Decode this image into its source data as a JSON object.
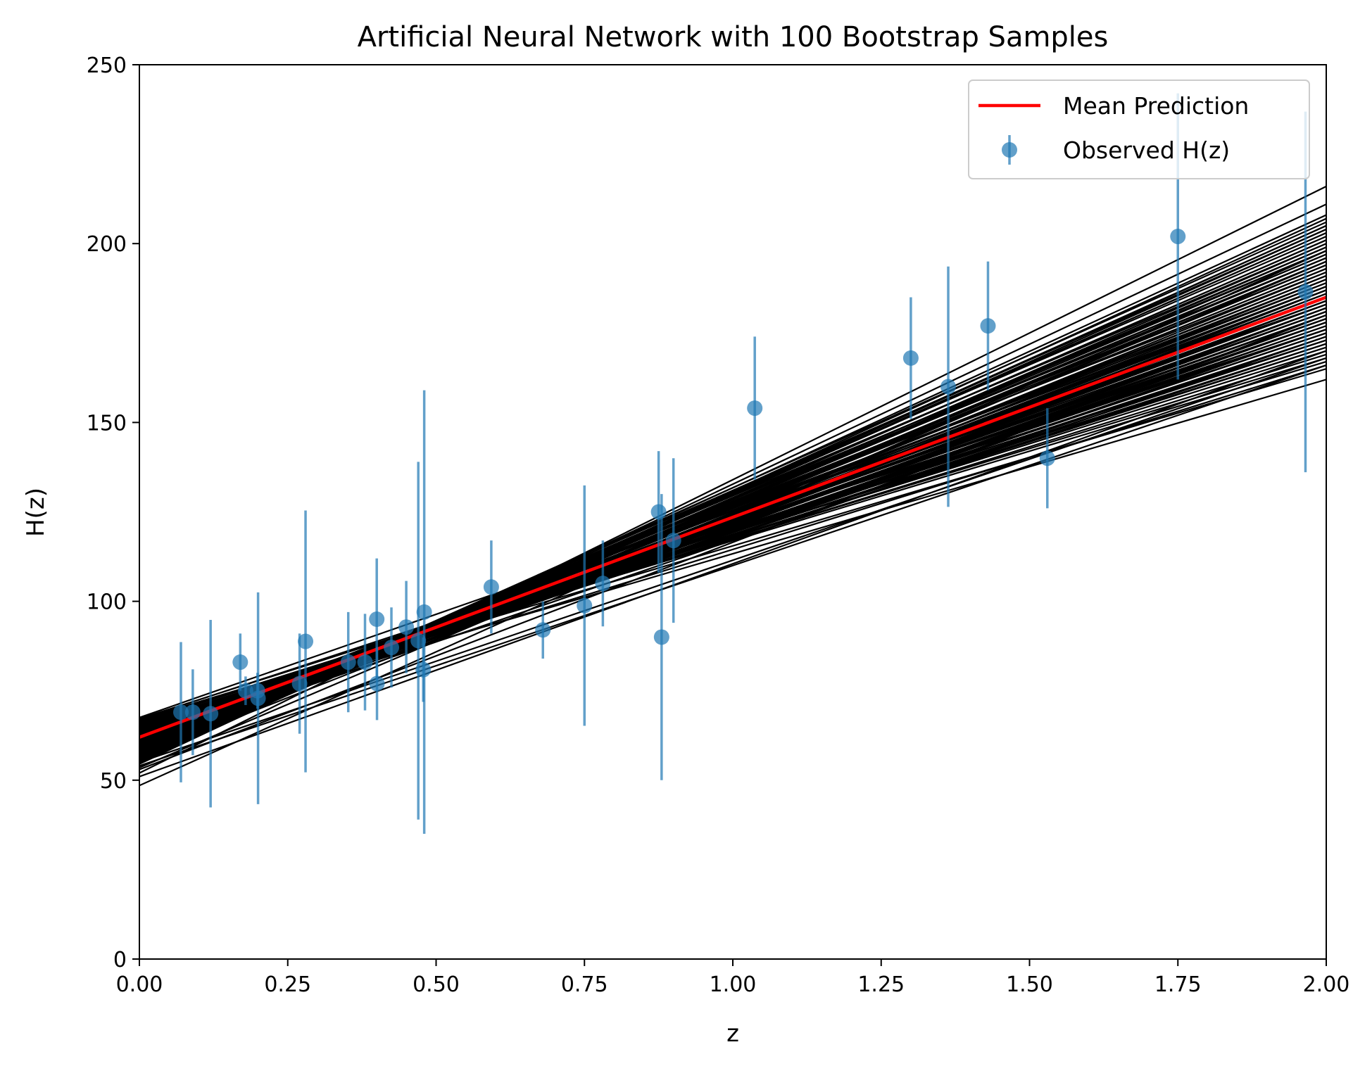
{
  "chart_data": {
    "type": "line",
    "title": "Artificial Neural Network with 100 Bootstrap Samples",
    "xlabel": "z",
    "ylabel": "H(z)",
    "xlim": [
      0,
      2
    ],
    "ylim": [
      0,
      250
    ],
    "xticks": [
      "0.00",
      "0.25",
      "0.50",
      "0.75",
      "1.00",
      "1.25",
      "1.50",
      "1.75",
      "2.00"
    ],
    "yticks": [
      "0",
      "50",
      "100",
      "150",
      "200",
      "250"
    ],
    "grid": false,
    "legend": {
      "placement": "top-right",
      "entries": [
        "Mean Prediction",
        "Observed H(z)"
      ]
    },
    "colors": {
      "mean_line": "#ff0000",
      "bootstrap_lines": "#000000",
      "observed": "#1f77b4"
    },
    "mean_prediction": {
      "name": "Mean Prediction",
      "x": [
        0,
        2
      ],
      "y": [
        62,
        185
      ]
    },
    "bootstrap_lines": [
      [
        67.5,
        183
      ],
      [
        66.2,
        170
      ],
      [
        65.0,
        175
      ],
      [
        64.5,
        176
      ],
      [
        64.0,
        179
      ],
      [
        63.5,
        172
      ],
      [
        63.2,
        185
      ],
      [
        62.8,
        174
      ],
      [
        62.5,
        188
      ],
      [
        62.2,
        181
      ],
      [
        62.0,
        177
      ],
      [
        61.8,
        192
      ],
      [
        61.5,
        184
      ],
      [
        61.2,
        183
      ],
      [
        61.0,
        190
      ],
      [
        60.8,
        186
      ],
      [
        60.5,
        194
      ],
      [
        60.3,
        188
      ],
      [
        60.0,
        196
      ],
      [
        59.8,
        191
      ],
      [
        59.5,
        198
      ],
      [
        59.2,
        193
      ],
      [
        59.0,
        200
      ],
      [
        58.8,
        195
      ],
      [
        58.5,
        202
      ],
      [
        58.3,
        197
      ],
      [
        58.0,
        204
      ],
      [
        57.8,
        199
      ],
      [
        57.5,
        206
      ],
      [
        57.0,
        201
      ],
      [
        56.5,
        203
      ],
      [
        56.0,
        205
      ],
      [
        55.5,
        208
      ],
      [
        55.0,
        168
      ],
      [
        54.5,
        211
      ],
      [
        54.0,
        166
      ],
      [
        53.5,
        195
      ],
      [
        53.0,
        180
      ],
      [
        52.0,
        216
      ],
      [
        51.0,
        170
      ],
      [
        48.5,
        198
      ],
      [
        64.8,
        178
      ],
      [
        63.8,
        181
      ],
      [
        62.6,
        182
      ],
      [
        61.6,
        186
      ],
      [
        60.6,
        179
      ],
      [
        59.6,
        184
      ],
      [
        58.6,
        188
      ],
      [
        57.6,
        192
      ],
      [
        56.8,
        187
      ],
      [
        65.5,
        172
      ],
      [
        66.8,
        168
      ],
      [
        67.0,
        176
      ],
      [
        63.0,
        166
      ],
      [
        60.2,
        174
      ],
      [
        59.0,
        182
      ],
      [
        58.2,
        190
      ],
      [
        57.2,
        196
      ],
      [
        56.2,
        199
      ],
      [
        55.8,
        200
      ],
      [
        62.4,
        178
      ],
      [
        61.4,
        180
      ],
      [
        63.6,
        177
      ],
      [
        64.2,
        173
      ],
      [
        65.2,
        171
      ],
      [
        66.0,
        165
      ],
      [
        64.6,
        162
      ],
      [
        62.9,
        189
      ],
      [
        61.9,
        187
      ],
      [
        60.9,
        185
      ],
      [
        59.9,
        189
      ],
      [
        58.9,
        193
      ],
      [
        57.9,
        197
      ],
      [
        61.3,
        176
      ],
      [
        60.4,
        182
      ],
      [
        63.3,
        180
      ],
      [
        62.1,
        184
      ],
      [
        61.1,
        181
      ],
      [
        60.1,
        187
      ],
      [
        59.3,
        186
      ],
      [
        58.4,
        194
      ],
      [
        57.4,
        198
      ],
      [
        56.6,
        201
      ],
      [
        55.6,
        204
      ],
      [
        63.9,
        175
      ],
      [
        65.8,
        169
      ],
      [
        66.5,
        171
      ],
      [
        64.4,
        174
      ],
      [
        62.7,
        179
      ],
      [
        61.7,
        183
      ],
      [
        60.7,
        178
      ],
      [
        59.7,
        185
      ],
      [
        58.7,
        191
      ],
      [
        57.7,
        195
      ],
      [
        56.9,
        203
      ],
      [
        55.2,
        205
      ],
      [
        54.8,
        207
      ],
      [
        66.9,
        167
      ],
      [
        67.2,
        173
      ],
      [
        63.4,
        183
      ]
    ],
    "observed": {
      "name": "Observed H(z)",
      "points": [
        {
          "z": 0.07,
          "H": 69,
          "err": 19.6
        },
        {
          "z": 0.09,
          "H": 69,
          "err": 12
        },
        {
          "z": 0.12,
          "H": 68.6,
          "err": 26.2
        },
        {
          "z": 0.17,
          "H": 83,
          "err": 8
        },
        {
          "z": 0.179,
          "H": 75,
          "err": 4
        },
        {
          "z": 0.199,
          "H": 75,
          "err": 5
        },
        {
          "z": 0.2,
          "H": 72.9,
          "err": 29.6
        },
        {
          "z": 0.27,
          "H": 77,
          "err": 14
        },
        {
          "z": 0.28,
          "H": 88.8,
          "err": 36.6
        },
        {
          "z": 0.352,
          "H": 83,
          "err": 14
        },
        {
          "z": 0.3802,
          "H": 83,
          "err": 13.5
        },
        {
          "z": 0.4,
          "H": 95,
          "err": 17
        },
        {
          "z": 0.4004,
          "H": 77,
          "err": 10.2
        },
        {
          "z": 0.4247,
          "H": 87.1,
          "err": 11.2
        },
        {
          "z": 0.4497,
          "H": 92.8,
          "err": 12.9
        },
        {
          "z": 0.47,
          "H": 89,
          "err": 50
        },
        {
          "z": 0.4783,
          "H": 80.9,
          "err": 9
        },
        {
          "z": 0.48,
          "H": 97,
          "err": 62
        },
        {
          "z": 0.593,
          "H": 104,
          "err": 13
        },
        {
          "z": 0.68,
          "H": 92,
          "err": 8
        },
        {
          "z": 0.75,
          "H": 98.8,
          "err": 33.6
        },
        {
          "z": 0.781,
          "H": 105,
          "err": 12
        },
        {
          "z": 0.875,
          "H": 125,
          "err": 17
        },
        {
          "z": 0.88,
          "H": 90,
          "err": 40
        },
        {
          "z": 0.9,
          "H": 117,
          "err": 23
        },
        {
          "z": 1.037,
          "H": 154,
          "err": 20
        },
        {
          "z": 1.3,
          "H": 168,
          "err": 17
        },
        {
          "z": 1.363,
          "H": 160,
          "err": 33.6
        },
        {
          "z": 1.43,
          "H": 177,
          "err": 18
        },
        {
          "z": 1.53,
          "H": 140,
          "err": 14
        },
        {
          "z": 1.75,
          "H": 202,
          "err": 40
        },
        {
          "z": 1.965,
          "H": 186.5,
          "err": 50.4
        }
      ]
    }
  }
}
